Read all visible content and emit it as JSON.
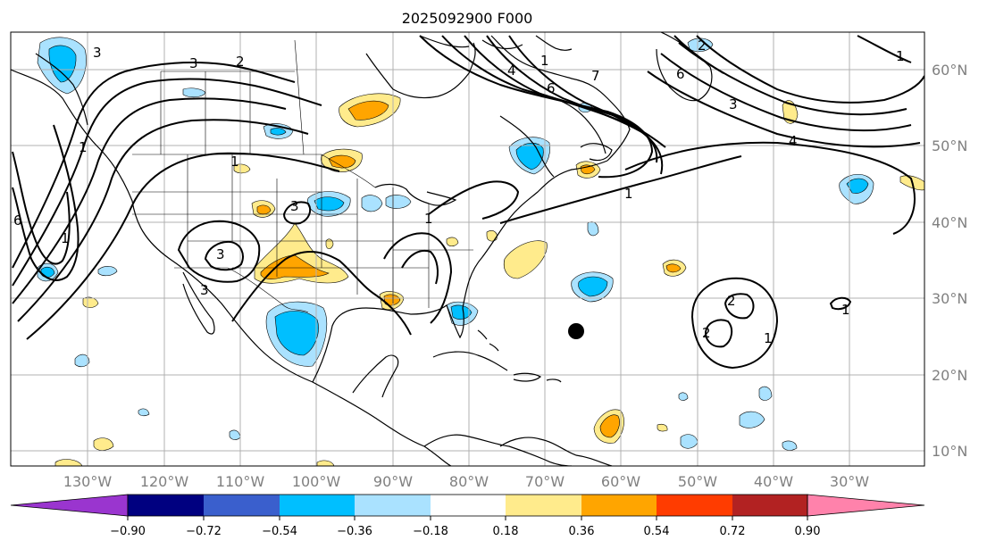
{
  "map": {
    "title": "2025092900 F000",
    "longitude_labels": [
      "130°W",
      "120°W",
      "110°W",
      "100°W",
      "90°W",
      "80°W",
      "70°W",
      "60°W",
      "50°W",
      "40°W",
      "30°W"
    ],
    "latitude_labels": [
      "60°N",
      "50°N",
      "40°N",
      "30°N",
      "20°N",
      "10°N"
    ],
    "contour_labels": [
      "3",
      "3",
      "2",
      "1",
      "7",
      "6",
      "6",
      "4",
      "3",
      "4",
      "1",
      "3",
      "1",
      "1",
      "1",
      "1",
      "2",
      "2",
      "1",
      "6",
      "1",
      "3",
      "1",
      "3",
      "2"
    ],
    "colors": {
      "axis_label": "#808080",
      "contour": "#000000",
      "marker": "#000000"
    }
  },
  "colorbar": {
    "tick_labels": [
      "−0.90",
      "−0.72",
      "−0.54",
      "−0.36",
      "−0.18",
      "0.18",
      "0.36",
      "0.54",
      "0.72",
      "0.90"
    ],
    "colors": [
      "#9a35cf",
      "#000080",
      "#3a5fcd",
      "#00bfff",
      "#aae2ff",
      "#ffffff",
      "#ffeb8c",
      "#ffa500",
      "#ff3c00",
      "#b22222",
      "#ff82ab"
    ]
  }
}
